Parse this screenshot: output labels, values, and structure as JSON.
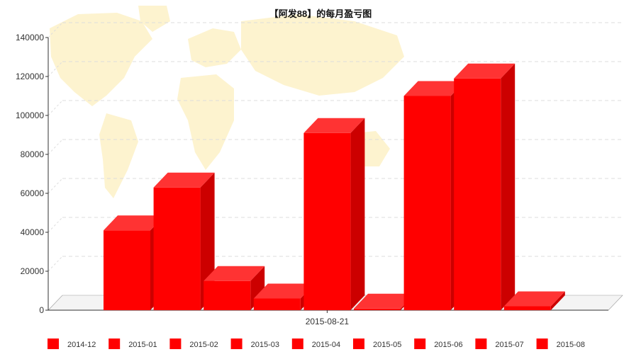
{
  "chart_data": {
    "type": "bar",
    "title": "【阿发88】的每月盈亏图",
    "xlabel": "",
    "ylabel": "",
    "categories": [
      "2015-08-21"
    ],
    "ylim": [
      0,
      140000
    ],
    "yticks": [
      0,
      20000,
      40000,
      60000,
      80000,
      100000,
      120000,
      140000
    ],
    "grid": true,
    "legend_position": "bottom",
    "three_d": true,
    "series": [
      {
        "name": "2014-12",
        "values": [
          41000
        ]
      },
      {
        "name": "2015-01",
        "values": [
          63000
        ]
      },
      {
        "name": "2015-02",
        "values": [
          15000
        ]
      },
      {
        "name": "2015-03",
        "values": [
          6000
        ]
      },
      {
        "name": "2015-04",
        "values": [
          91000
        ]
      },
      {
        "name": "2015-05",
        "values": [
          800
        ]
      },
      {
        "name": "2015-06",
        "values": [
          110000
        ]
      },
      {
        "name": "2015-07",
        "values": [
          119000
        ]
      },
      {
        "name": "2015-08",
        "values": [
          2000
        ]
      }
    ],
    "colors": {
      "bar_front": "#ff0000",
      "bar_top": "#ff3333",
      "bar_side": "#cc0000",
      "grid": "#dddddd",
      "axis": "#333333",
      "floor": "#f4f4f4",
      "map": "#fdf3cf"
    }
  }
}
